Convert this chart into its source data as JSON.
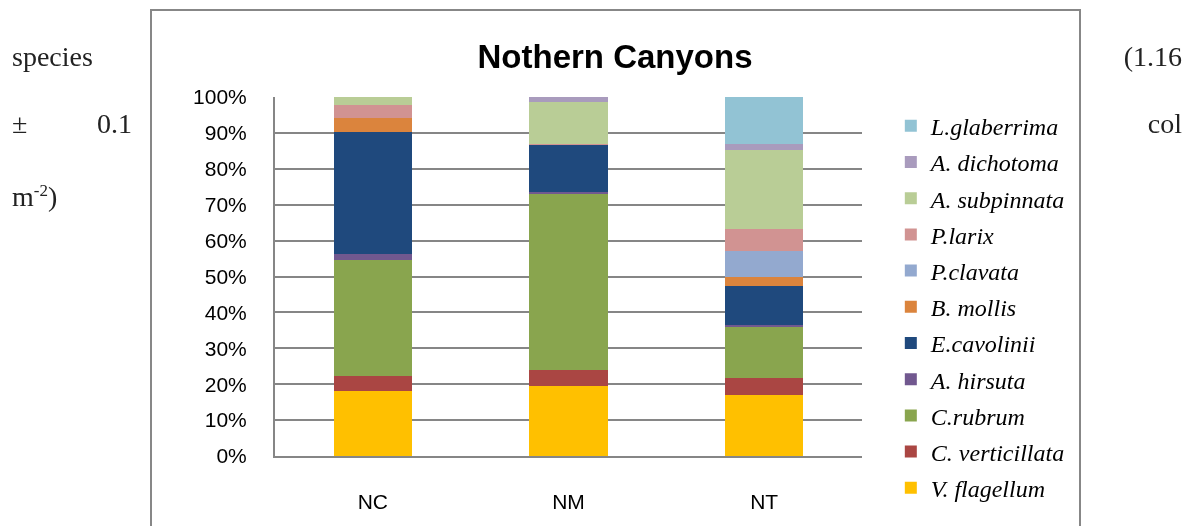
{
  "chart_data": {
    "type": "bar",
    "title": "Nothern Canyons",
    "stacked": true,
    "categories": [
      "NC",
      "NM",
      "NT"
    ],
    "series": [
      {
        "name": "V. flagellum",
        "color": "#ffc000",
        "values": [
          18.0,
          19.5,
          17.0
        ]
      },
      {
        "name": "C. verticillata",
        "color": "#aa4643",
        "values": [
          4.3,
          4.4,
          4.6
        ]
      },
      {
        "name": "C.rubrum",
        "color": "#89a54e",
        "values": [
          32.2,
          49.0,
          14.4
        ]
      },
      {
        "name": "A. hirsuta",
        "color": "#71588f",
        "values": [
          1.7,
          0.6,
          0.5
        ]
      },
      {
        "name": "E.cavolinii",
        "color": "#1f497d",
        "values": [
          34.1,
          13.0,
          10.8
        ]
      },
      {
        "name": "B. mollis",
        "color": "#db843d",
        "values": [
          3.9,
          0.2,
          2.5
        ]
      },
      {
        "name": "P.clavata",
        "color": "#93a9cf",
        "values": [
          0,
          0,
          7.4
        ]
      },
      {
        "name": "P.larix",
        "color": "#d19392",
        "values": [
          3.6,
          0.3,
          6.0
        ]
      },
      {
        "name": "A. subpinnata",
        "color": "#b9cd96",
        "values": [
          2.2,
          11.6,
          22.1
        ]
      },
      {
        "name": "A. dichotoma",
        "color": "#a99bbd",
        "values": [
          0,
          1.4,
          1.5
        ]
      },
      {
        "name": "L.glaberrima",
        "color": "#92c3d4",
        "values": [
          0,
          0,
          13.2
        ]
      }
    ],
    "ylim": [
      0,
      100
    ],
    "yticks": [
      {
        "value": 0,
        "label": "0%"
      },
      {
        "value": 10,
        "label": "10%"
      },
      {
        "value": 20,
        "label": "20%"
      },
      {
        "value": 30,
        "label": "30%"
      },
      {
        "value": 40,
        "label": "40%"
      },
      {
        "value": 50,
        "label": "50%"
      },
      {
        "value": 60,
        "label": "60%"
      },
      {
        "value": 70,
        "label": "70%"
      },
      {
        "value": 80,
        "label": "80%"
      },
      {
        "value": 90,
        "label": "90%"
      },
      {
        "value": 100,
        "label": "100%"
      }
    ],
    "grid": "y",
    "legend": "right",
    "annotations": [
      "species",
      "(1.16",
      "± 0.1",
      "col",
      "m$^{-2}$)"
    ]
  }
}
